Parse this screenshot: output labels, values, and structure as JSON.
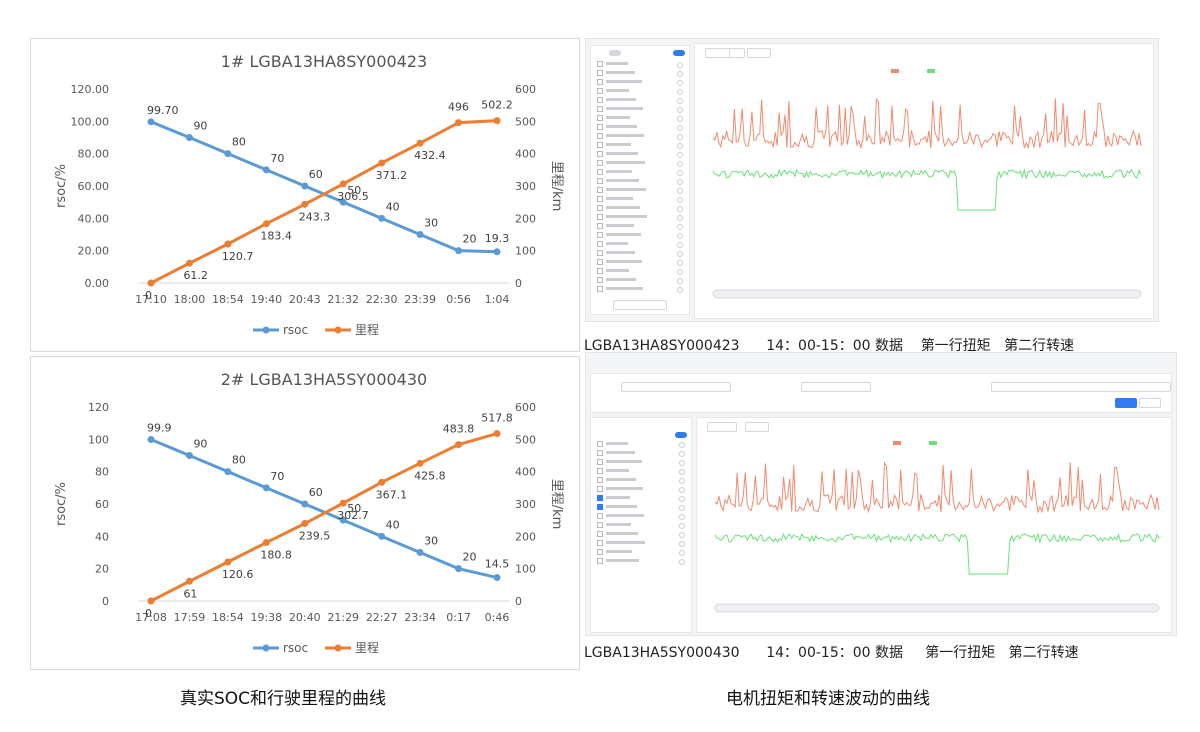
{
  "chart_data": [
    {
      "type": "line",
      "title": "1# LGBA13HA8SY000423",
      "categories": [
        "17:10",
        "18:00",
        "18:54",
        "19:40",
        "20:43",
        "21:32",
        "22:30",
        "23:39",
        "0:56",
        "1:04"
      ],
      "ylabel": "rsoc/%",
      "y2label": "里程/km",
      "ylim": [
        0,
        120
      ],
      "y2lim": [
        0,
        600
      ],
      "yticks": [
        "0.00",
        "20.00",
        "40.00",
        "60.00",
        "80.00",
        "100.00",
        "120.00"
      ],
      "y2ticks": [
        "0",
        "100",
        "200",
        "300",
        "400",
        "500",
        "600"
      ],
      "legend_position": "bottom",
      "series": [
        {
          "name": "rsoc",
          "axis": "left",
          "color": "#5b9bd5",
          "values": [
            99.7,
            90,
            80,
            70,
            60,
            50,
            40,
            30,
            20,
            19.3
          ],
          "labels": [
            "99.70",
            "90",
            "80",
            "70",
            "60",
            "50",
            "40",
            "30",
            "20",
            "19.3"
          ]
        },
        {
          "name": "里程",
          "axis": "right",
          "color": "#ed7d31",
          "values": [
            0,
            61.2,
            120.7,
            183.4,
            243.3,
            306.5,
            371.2,
            432.4,
            496,
            502.2
          ],
          "labels": [
            "0",
            "61.2",
            "120.7",
            "183.4",
            "243.3",
            "306.5",
            "371.2",
            "432.4",
            "496",
            "502.2"
          ]
        }
      ]
    },
    {
      "type": "line",
      "title": "2# LGBA13HA5SY000430",
      "categories": [
        "17:08",
        "17:59",
        "18:54",
        "19:38",
        "20:40",
        "21:29",
        "22:27",
        "23:34",
        "0:17",
        "0:46"
      ],
      "ylabel": "rsoc/%",
      "y2label": "里程/km",
      "ylim": [
        0,
        120
      ],
      "y2lim": [
        0,
        600
      ],
      "yticks": [
        "0",
        "20",
        "40",
        "60",
        "80",
        "100",
        "120"
      ],
      "y2ticks": [
        "0",
        "100",
        "200",
        "300",
        "400",
        "500",
        "600"
      ],
      "legend_position": "bottom",
      "series": [
        {
          "name": "rsoc",
          "axis": "left",
          "color": "#5b9bd5",
          "values": [
            99.9,
            90,
            80,
            70,
            60,
            50,
            40,
            30,
            20,
            14.5
          ],
          "labels": [
            "99.9",
            "90",
            "80",
            "70",
            "60",
            "50",
            "40",
            "30",
            "20",
            "14.5"
          ]
        },
        {
          "name": "里程",
          "axis": "right",
          "color": "#ed7d31",
          "values": [
            0,
            61,
            120.6,
            180.8,
            239.5,
            302.7,
            367.1,
            425.8,
            483.8,
            517.8
          ],
          "labels": [
            "0",
            "61",
            "120.6",
            "180.8",
            "239.5",
            "302.7",
            "367.1",
            "425.8",
            "483.8",
            "517.8"
          ]
        }
      ]
    }
  ],
  "screenshots": {
    "top_caption": "LGBA13HA8SY000423      14：00-15：00 数据    第一行扭矩   第二行转速",
    "bottom_caption": "LGBA13HA5SY000430      14：00-15：00 数据     第一行扭矩   第二行转速",
    "line_colors": {
      "torque": "#f08a6e",
      "speed": "#6be07a"
    }
  },
  "captions": {
    "left": "真实SOC和行驶里程的曲线",
    "right": "电机扭矩和转速波动的曲线"
  }
}
